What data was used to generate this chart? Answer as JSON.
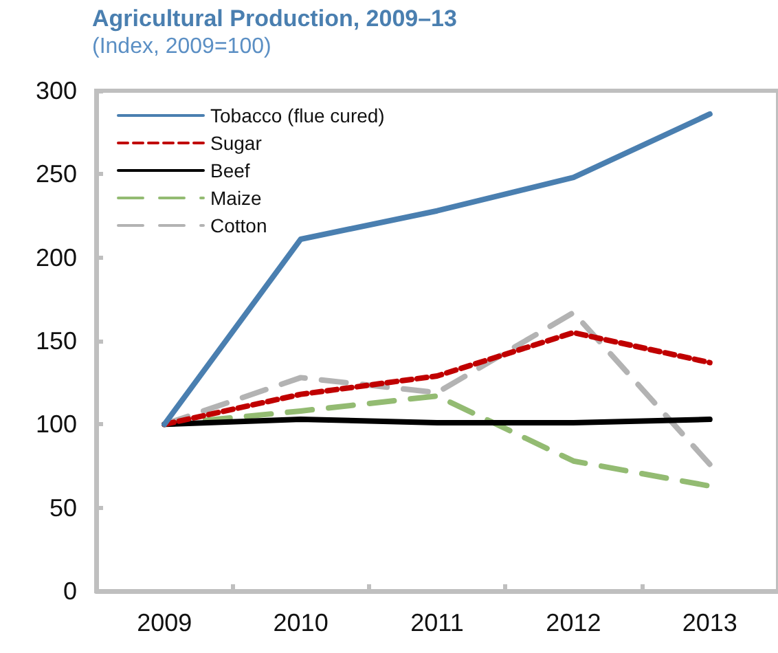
{
  "chart_data": {
    "type": "line",
    "title": "Agricultural Production, 2009–13",
    "subtitle": "(Index, 2009=100)",
    "categories": [
      "2009",
      "2010",
      "2011",
      "2012",
      "2013"
    ],
    "series": [
      {
        "name": "Tobacco (flue cured)",
        "color": "#4a7fb0",
        "line_style": "solid",
        "values": [
          100,
          211,
          228,
          248,
          286
        ]
      },
      {
        "name": "Sugar",
        "color": "#c00000",
        "line_style": "dotted",
        "values": [
          100,
          118,
          129,
          155,
          137
        ]
      },
      {
        "name": "Beef",
        "color": "#000000",
        "line_style": "solid",
        "values": [
          100,
          103,
          101,
          101,
          103
        ]
      },
      {
        "name": "Maize",
        "color": "#93bb72",
        "line_style": "dashed",
        "values": [
          100,
          108,
          117,
          78,
          63
        ]
      },
      {
        "name": "Cotton",
        "color": "#b3b3b3",
        "line_style": "dashed",
        "values": [
          100,
          128,
          119,
          167,
          76
        ]
      }
    ],
    "ylim": [
      0,
      300
    ],
    "yticks": [
      0,
      50,
      100,
      150,
      200,
      250,
      300
    ],
    "grid": false,
    "legend": "top left",
    "marker": "none"
  }
}
